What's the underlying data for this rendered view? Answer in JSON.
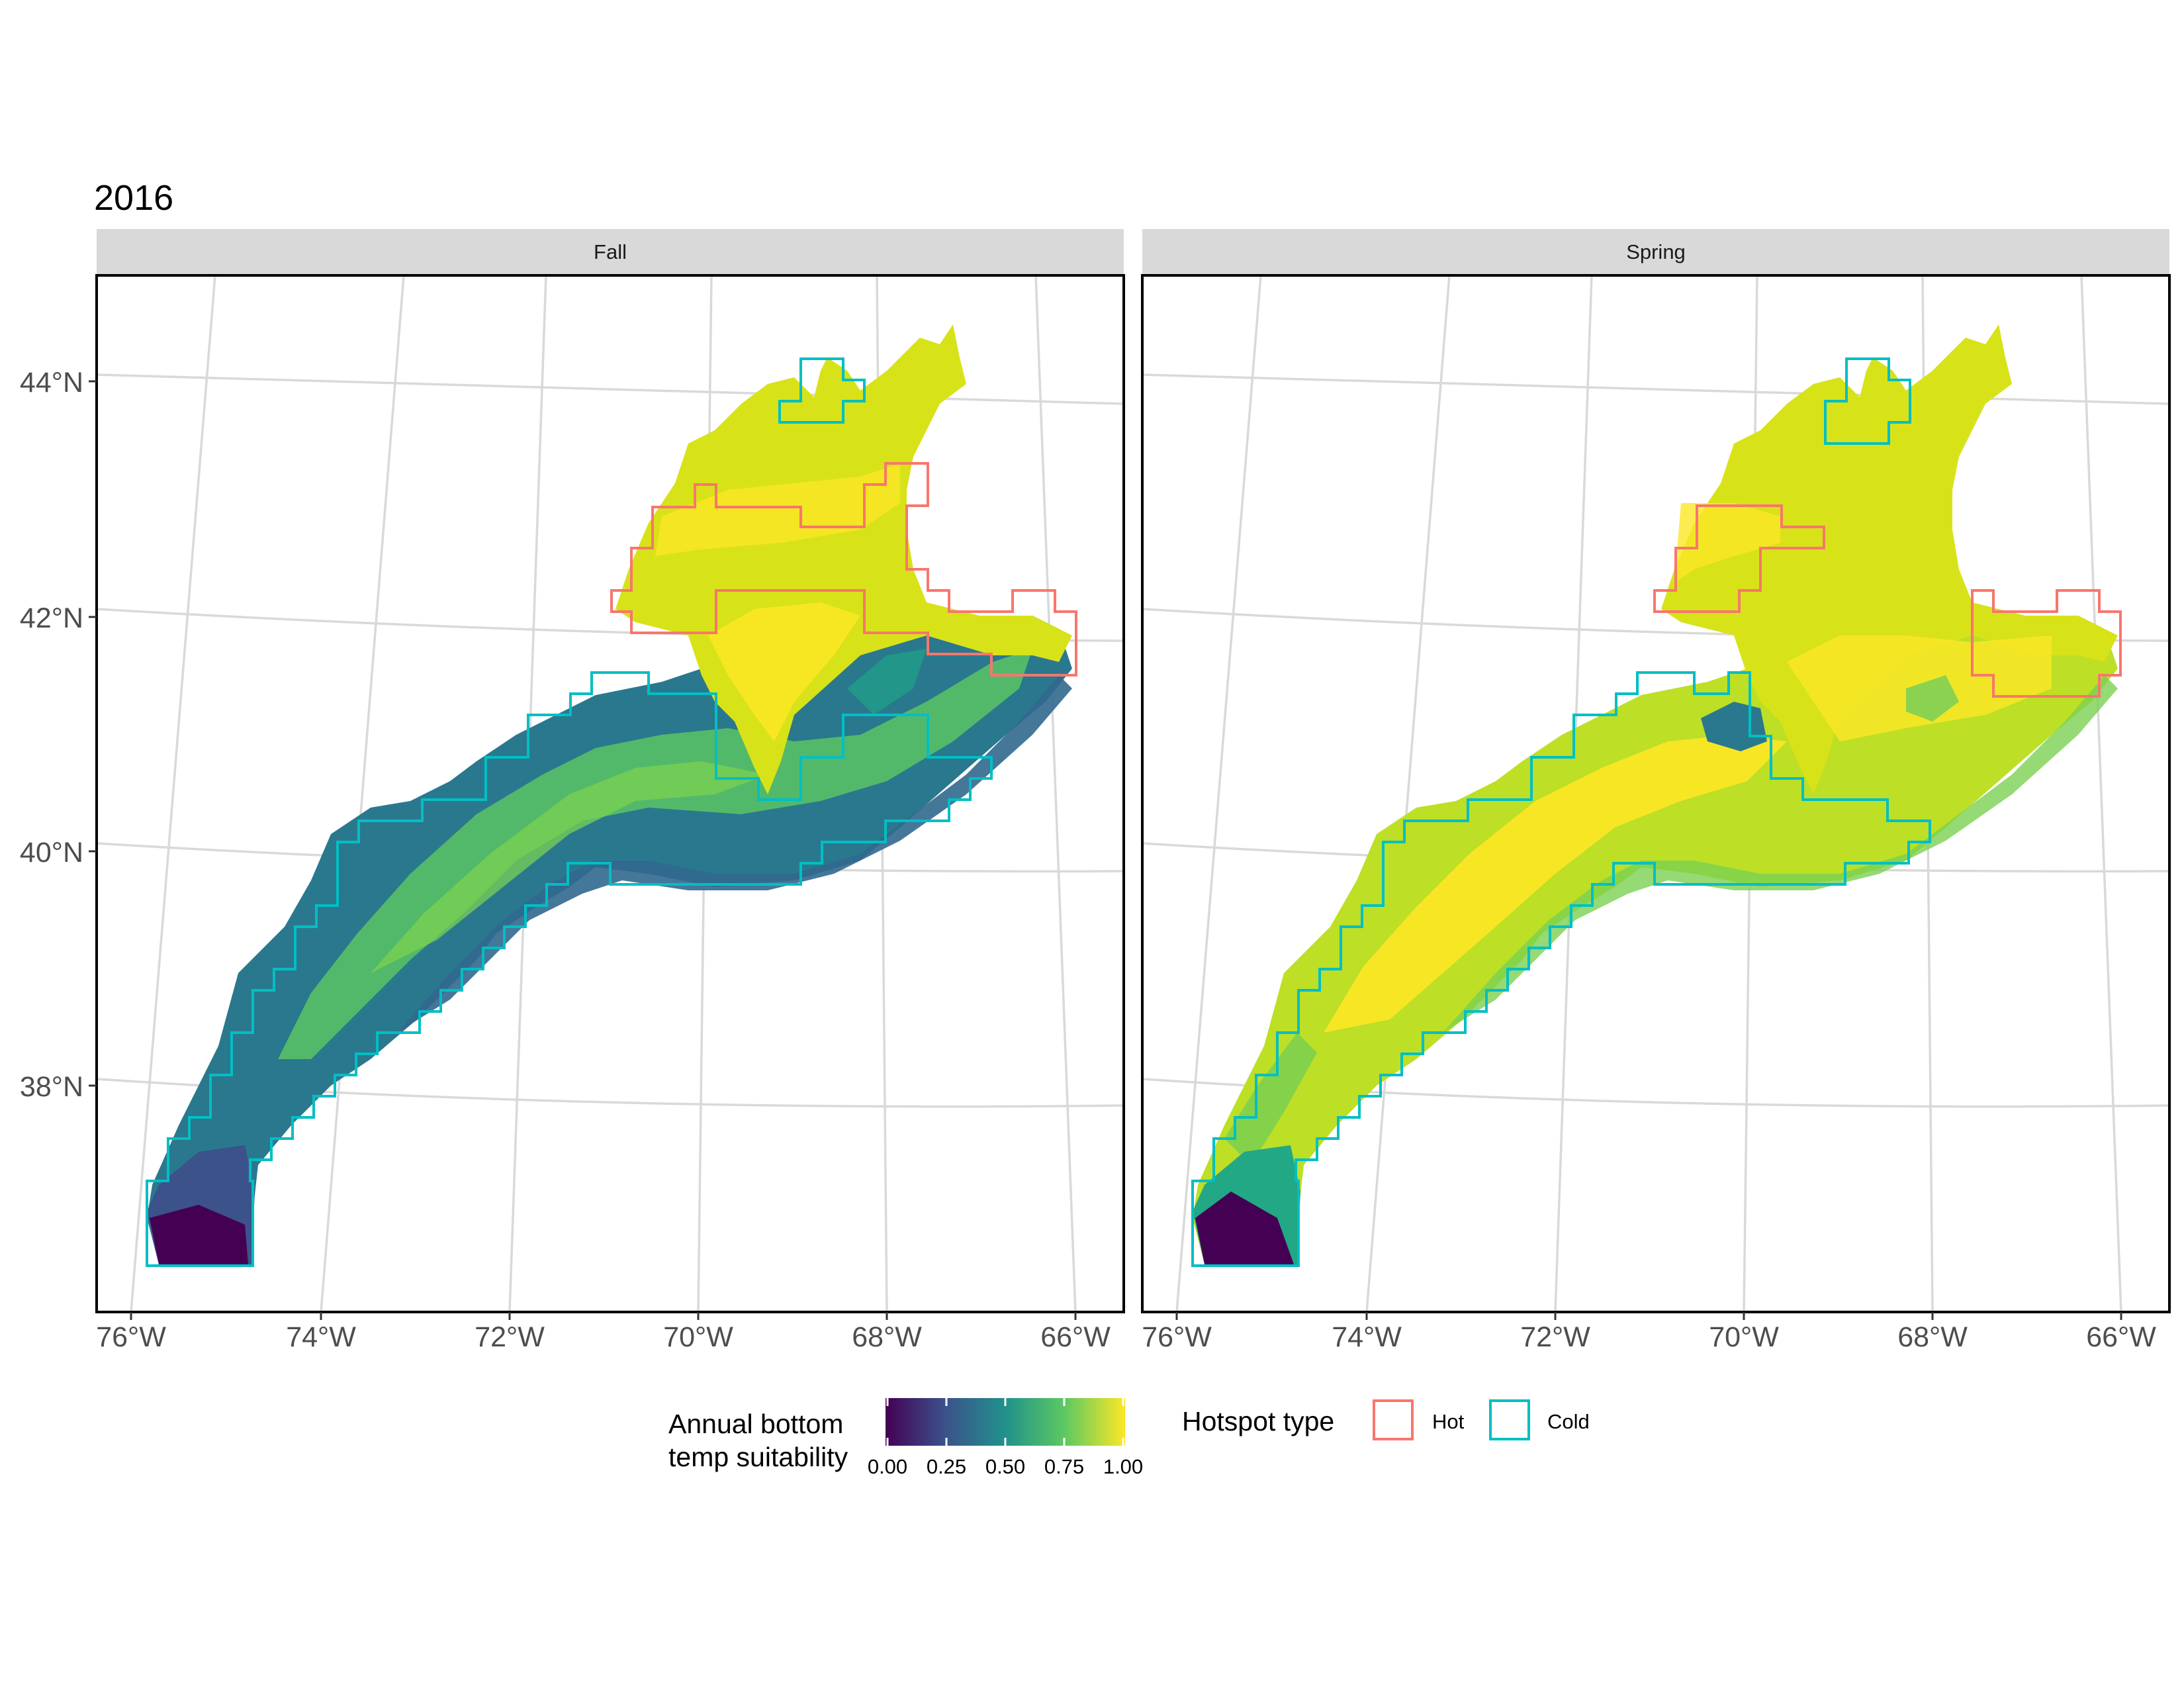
{
  "title": "2016",
  "panels": [
    {
      "label": "Fall"
    },
    {
      "label": "Spring"
    }
  ],
  "axes": {
    "x_ticks": [
      "76°W",
      "74°W",
      "72°W",
      "70°W",
      "68°W",
      "66°W"
    ],
    "y_ticks": [
      "44°N",
      "42°N",
      "40°N",
      "38°N"
    ]
  },
  "legend_fill": {
    "title_lines": [
      "Annual bottom",
      "temp suitability"
    ],
    "labels": [
      "0.00",
      "0.25",
      "0.50",
      "0.75",
      "1.00"
    ],
    "range": [
      0,
      1
    ],
    "palette": [
      "#440154",
      "#3b528b",
      "#21918c",
      "#5ec962",
      "#fde725"
    ]
  },
  "legend_hotspot": {
    "title": "Hotspot type",
    "items": [
      {
        "label": "Hot",
        "color": "#f8766d"
      },
      {
        "label": "Cold",
        "color": "#00bfc4"
      }
    ]
  },
  "colors": {
    "hot": "#f8766d",
    "cold": "#00bfc4",
    "strip": "#d9d9d9",
    "grid": "#d9d9d9"
  }
}
